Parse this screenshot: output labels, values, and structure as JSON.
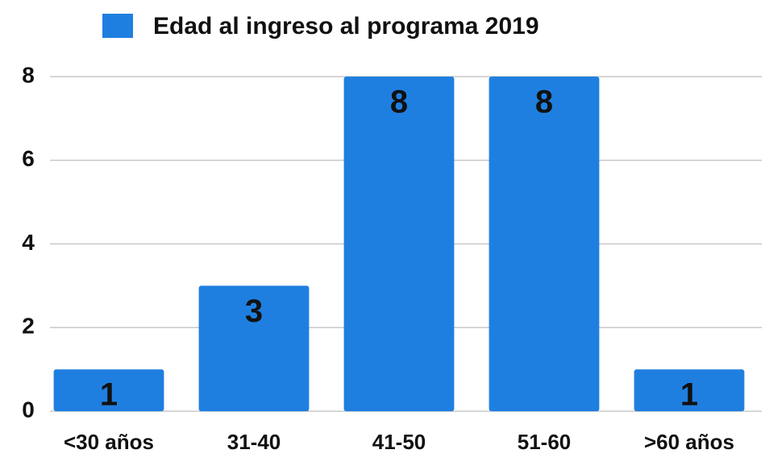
{
  "chart_data": {
    "type": "bar",
    "series": [
      {
        "name": "Edad al ingreso al programa 2019",
        "color": "#1f7fe0",
        "values": [
          1,
          3,
          8,
          8,
          1
        ]
      }
    ],
    "categories": [
      "<30 años",
      "31-40",
      "41-50",
      "51-60",
      ">60 años"
    ],
    "ylim": [
      0,
      8
    ],
    "yticks": [
      0,
      2,
      4,
      6,
      8
    ],
    "grid": true,
    "legend": "top"
  }
}
